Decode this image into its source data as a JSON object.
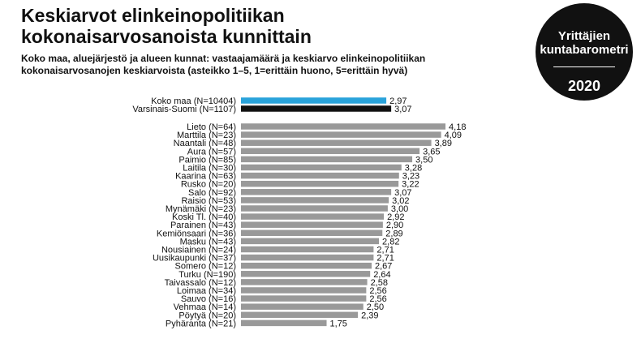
{
  "header": {
    "title_line1": "Keskiarvot elinkeinopolitiikan",
    "title_line2": "kokonaisarvosanoista kunnittain",
    "subtitle_line1": "Koko maa, aluejärjestö ja alueen kunnat: vastaajamäärä ja keskiarvo elinkeinopolitiikan",
    "subtitle_line2": "kokonaisarvosanojen keskiarvoista (asteikko 1–5,  1=erittäin huono, 5=erittäin hyvä)"
  },
  "badge": {
    "line1": "Yrittäjien",
    "line2": "kuntabarometri",
    "year": "2020"
  },
  "chart_data": {
    "type": "bar",
    "orientation": "horizontal",
    "colors": {
      "koko_maa": "#29a3db",
      "varsinais_suomi": "#111111",
      "municipality": "#999999"
    },
    "value_labels": "decimal comma",
    "summary": {
      "categories": [
        "Koko maa (N=10404)",
        "Varsinais-Suomi (N=1107)"
      ],
      "values": [
        2.97,
        3.07
      ],
      "labels": [
        "2,97",
        "3,07"
      ]
    },
    "categories": [
      "Lieto (N=64)",
      "Marttila (N=23)",
      "Naantali (N=48)",
      "Aura (N=57)",
      "Paimio (N=85)",
      "Laitila (N=30)",
      "Kaarina (N=63)",
      "Rusko (N=20)",
      "Salo (N=92)",
      "Raisio (N=53)",
      "Mynämäki (N=23)",
      "Koski Tl. (N=40)",
      "Parainen (N=43)",
      "Kemiönsaari (N=36)",
      "Masku (N=43)",
      "Nousiainen (N=24)",
      "Uusikaupunki (N=37)",
      "Somero (N=12)",
      "Turku (N=190)",
      "Taivassalo (N=12)",
      "Loimaa (N=34)",
      "Sauvo (N=16)",
      "Vehmaa (N=14)",
      "Pöytyä (N=20)",
      "Pyhäranta (N=21)"
    ],
    "values": [
      4.18,
      4.09,
      3.89,
      3.65,
      3.5,
      3.28,
      3.23,
      3.22,
      3.07,
      3.02,
      3.0,
      2.92,
      2.9,
      2.89,
      2.82,
      2.71,
      2.71,
      2.67,
      2.64,
      2.58,
      2.56,
      2.56,
      2.5,
      2.39,
      1.75
    ],
    "labels": [
      "4,18",
      "4,09",
      "3,89",
      "3,65",
      "3,50",
      "3,28",
      "3,23",
      "3,22",
      "3,07",
      "3,02",
      "3,00",
      "2,92",
      "2,90",
      "2,89",
      "2,82",
      "2,71",
      "2,71",
      "2,67",
      "2,64",
      "2,58",
      "2,56",
      "2,56",
      "2,50",
      "2,39",
      "1,75"
    ]
  }
}
